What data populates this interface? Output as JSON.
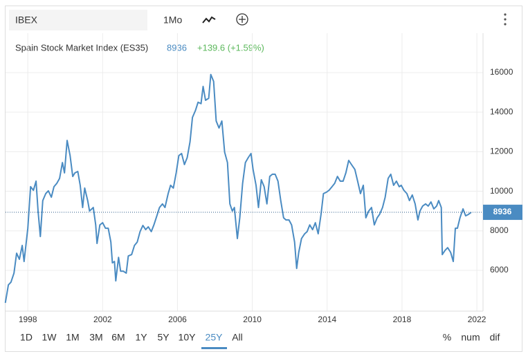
{
  "ui": {
    "symbol": "IBEX",
    "interval": "1Mo",
    "ranges": [
      "1D",
      "1W",
      "1M",
      "3M",
      "6M",
      "1Y",
      "5Y",
      "10Y",
      "25Y",
      "All"
    ],
    "modes": [
      "%",
      "num",
      "dif"
    ]
  },
  "chart_data": {
    "type": "line",
    "title": "Spain Stock Market Index (ES35)",
    "last_price": 8936,
    "change": "+139.6 (+1.59%)",
    "color": "#4a8bc2",
    "grid": true,
    "xlim": [
      1996.81,
      2022.33
    ],
    "xticks": [
      1998,
      2002,
      2006,
      2010,
      2014,
      2018,
      2022
    ],
    "ylim": [
      3940,
      17990
    ],
    "yticks": [
      6000,
      8000,
      10000,
      12000,
      14000,
      16000
    ],
    "x": [
      1996.8,
      1996.96,
      1997.1,
      1997.26,
      1997.4,
      1997.55,
      1997.7,
      1997.8,
      1998.0,
      1998.15,
      1998.3,
      1998.44,
      1998.55,
      1998.67,
      1998.8,
      1998.96,
      1999.1,
      1999.26,
      1999.4,
      1999.55,
      1999.7,
      1999.85,
      1999.96,
      2000.1,
      2000.26,
      2000.4,
      2000.52,
      2000.67,
      2000.8,
      2000.93,
      2001.04,
      2001.2,
      2001.3,
      2001.5,
      2001.63,
      2001.7,
      2001.85,
      2002.0,
      2002.15,
      2002.3,
      2002.44,
      2002.52,
      2002.63,
      2002.7,
      2002.85,
      2002.96,
      2003.1,
      2003.26,
      2003.37,
      2003.55,
      2003.7,
      2003.85,
      2004.0,
      2004.15,
      2004.3,
      2004.44,
      2004.6,
      2004.74,
      2004.9,
      2005.04,
      2005.2,
      2005.33,
      2005.5,
      2005.63,
      2005.78,
      2005.93,
      2006.07,
      2006.22,
      2006.37,
      2006.52,
      2006.67,
      2006.8,
      2006.96,
      2007.1,
      2007.26,
      2007.37,
      2007.5,
      2007.67,
      2007.78,
      2007.93,
      2008.07,
      2008.22,
      2008.37,
      2008.52,
      2008.67,
      2008.8,
      2008.93,
      2009.04,
      2009.2,
      2009.33,
      2009.48,
      2009.63,
      2009.78,
      2009.93,
      2010.04,
      2010.2,
      2010.33,
      2010.48,
      2010.63,
      2010.78,
      2010.93,
      2011.07,
      2011.22,
      2011.37,
      2011.52,
      2011.67,
      2011.8,
      2011.96,
      2012.1,
      2012.26,
      2012.37,
      2012.48,
      2012.63,
      2012.8,
      2012.93,
      2013.07,
      2013.22,
      2013.37,
      2013.52,
      2013.67,
      2013.8,
      2013.96,
      2014.1,
      2014.26,
      2014.4,
      2014.55,
      2014.7,
      2014.85,
      2015.0,
      2015.15,
      2015.3,
      2015.48,
      2015.63,
      2015.78,
      2015.93,
      2016.07,
      2016.22,
      2016.37,
      2016.52,
      2016.67,
      2016.8,
      2016.96,
      2017.1,
      2017.26,
      2017.4,
      2017.55,
      2017.7,
      2017.85,
      2017.96,
      2018.1,
      2018.26,
      2018.4,
      2018.55,
      2018.7,
      2018.85,
      2018.96,
      2019.1,
      2019.26,
      2019.4,
      2019.55,
      2019.7,
      2019.85,
      2019.96,
      2020.1,
      2020.15,
      2020.3,
      2020.44,
      2020.6,
      2020.74,
      2020.85,
      2020.96,
      2021.1,
      2021.26,
      2021.4,
      2021.55,
      2021.7
    ],
    "values": [
      4355,
      5265,
      5400,
      5860,
      6870,
      6560,
      7260,
      6450,
      8130,
      10230,
      10050,
      10510,
      9000,
      7710,
      9530,
      9880,
      10020,
      9700,
      10230,
      10400,
      10650,
      11450,
      10930,
      12570,
      11800,
      10750,
      10930,
      11000,
      10300,
      9180,
      10160,
      9530,
      9000,
      9180,
      8300,
      7360,
      8300,
      8410,
      8130,
      8130,
      7430,
      6380,
      6450,
      5470,
      6660,
      5960,
      5960,
      5860,
      6730,
      6800,
      7260,
      7430,
      7960,
      8270,
      8060,
      8200,
      7960,
      8300,
      8760,
      9180,
      9360,
      9180,
      9880,
      10300,
      10160,
      10930,
      11800,
      11910,
      11350,
      11700,
      12500,
      13730,
      14080,
      14500,
      14430,
      15300,
      14600,
      14700,
      15900,
      15550,
      13550,
      13200,
      13550,
      11980,
      11450,
      9360,
      9000,
      9180,
      7610,
      8660,
      10400,
      11450,
      11700,
      11910,
      11100,
      10300,
      9180,
      10580,
      10230,
      9360,
      10750,
      10860,
      10860,
      10510,
      9530,
      8660,
      8550,
      8550,
      8300,
      7430,
      6100,
      6910,
      7610,
      7850,
      7960,
      8300,
      8060,
      8410,
      7850,
      8830,
      9880,
      9950,
      10050,
      10230,
      10400,
      10750,
      10510,
      10510,
      10930,
      11560,
      11350,
      11100,
      10510,
      9880,
      10300,
      8660,
      9000,
      9180,
      8300,
      8660,
      8830,
      9180,
      9700,
      10650,
      10860,
      10300,
      10510,
      10230,
      10300,
      10050,
      9880,
      9530,
      9810,
      9360,
      8550,
      9000,
      9250,
      9360,
      9250,
      9460,
      9110,
      9250,
      9530,
      9180,
      6800,
      7010,
      7150,
      6910,
      6450,
      8130,
      8130,
      8660,
      9110,
      8760,
      8830,
      8936
    ]
  }
}
